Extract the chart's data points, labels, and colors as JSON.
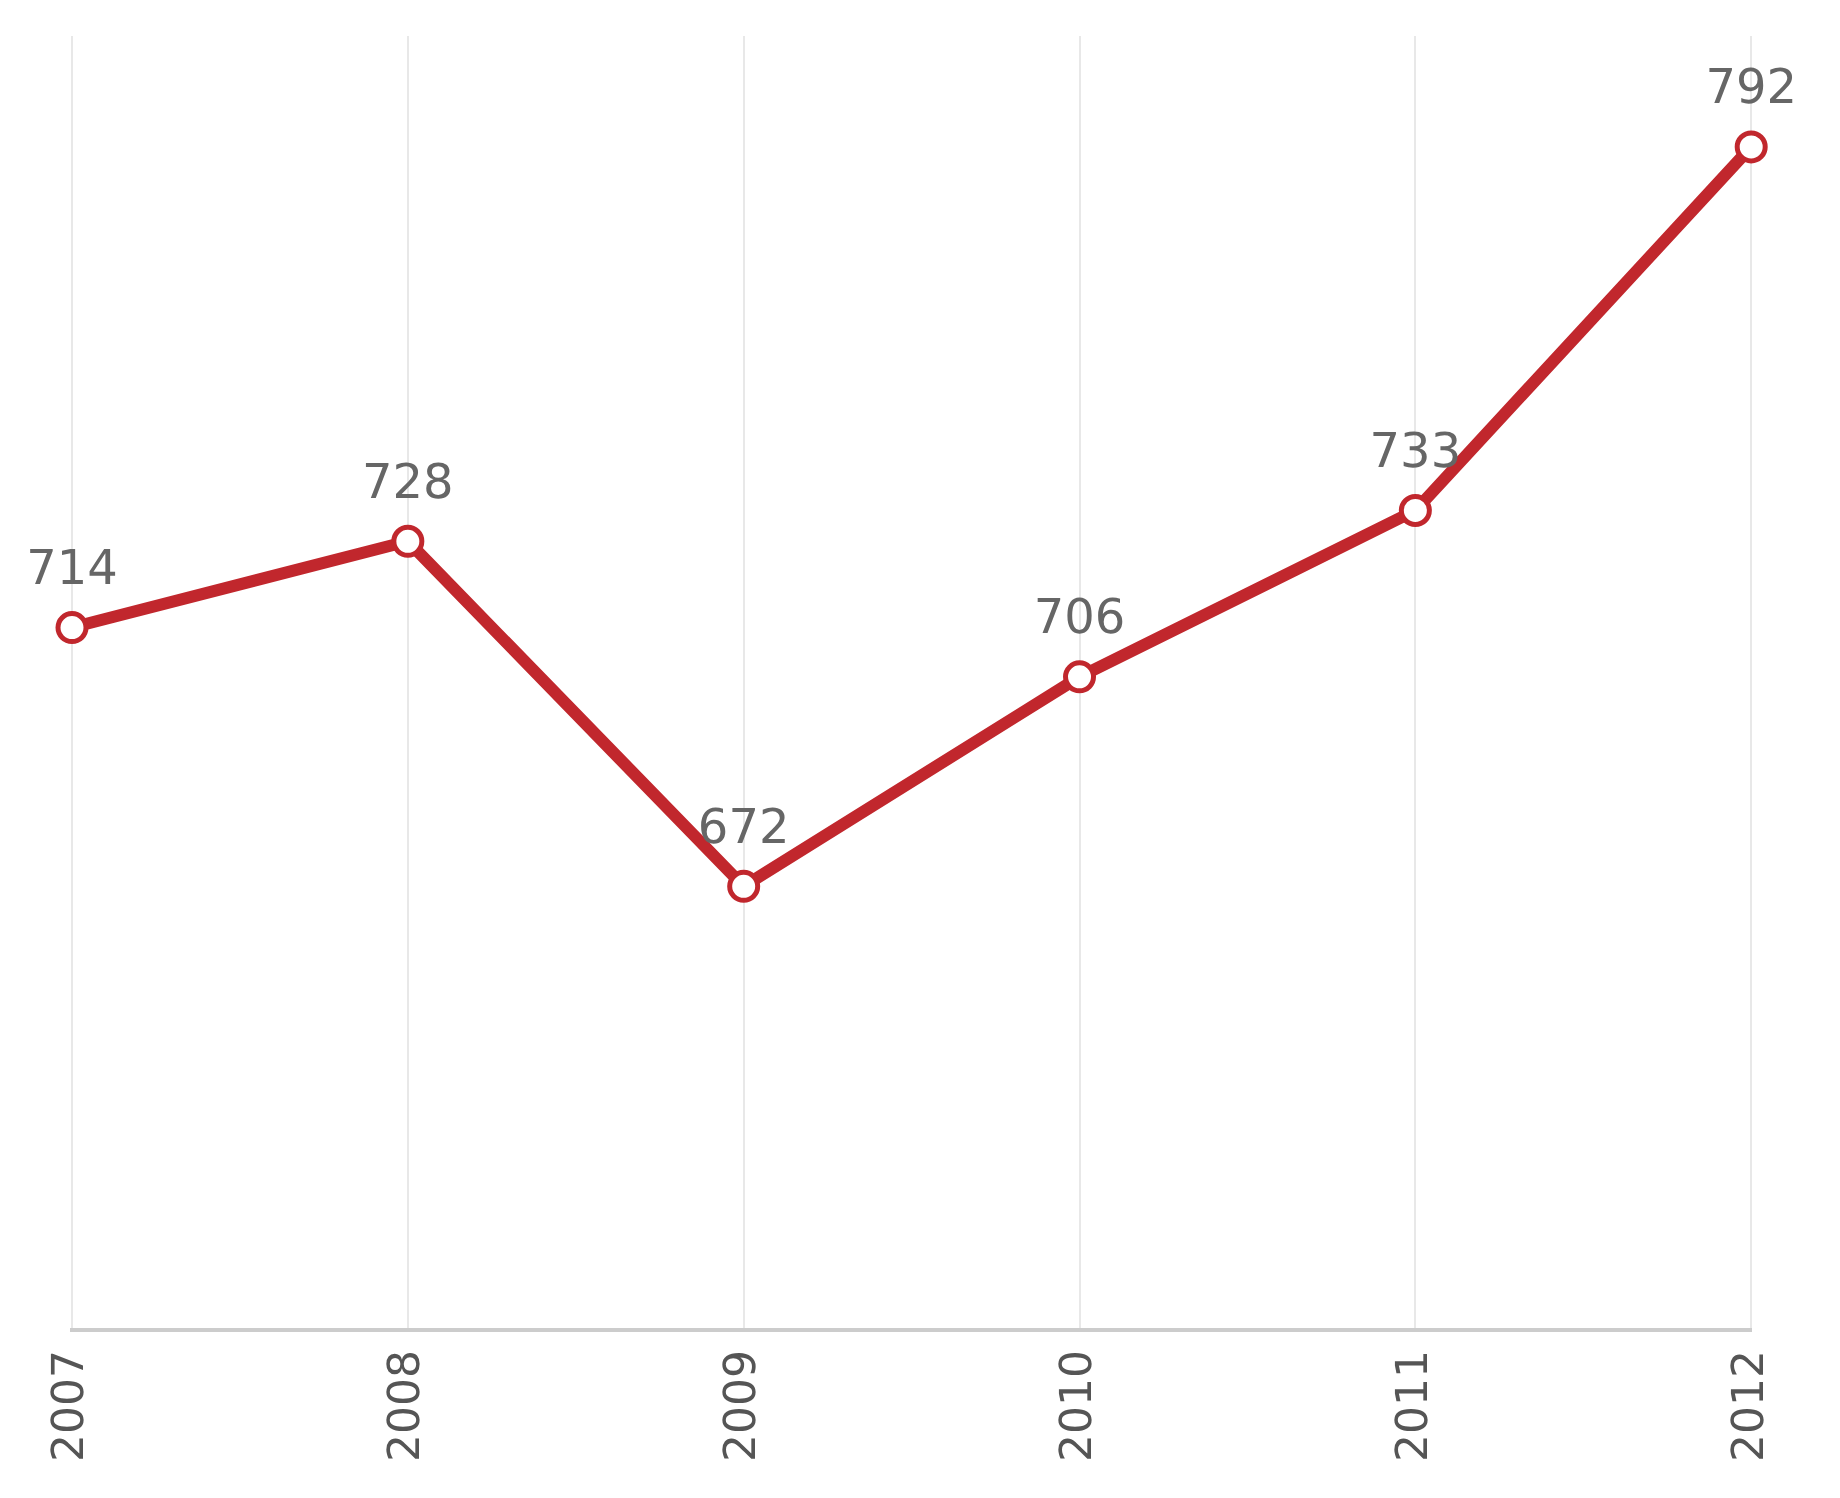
{
  "chart_data": {
    "type": "line",
    "categories": [
      "2007",
      "2008",
      "2009",
      "2010",
      "2011",
      "2012"
    ],
    "series": [
      {
        "color": "#c1272d",
        "values": [
          714,
          728,
          672,
          706,
          733,
          792
        ]
      }
    ],
    "ylim": [
      600,
      810
    ],
    "data_labels": true,
    "grid": "x",
    "legend": false,
    "marker": "circle",
    "line_style": "solid",
    "tick_labels": "x"
  }
}
